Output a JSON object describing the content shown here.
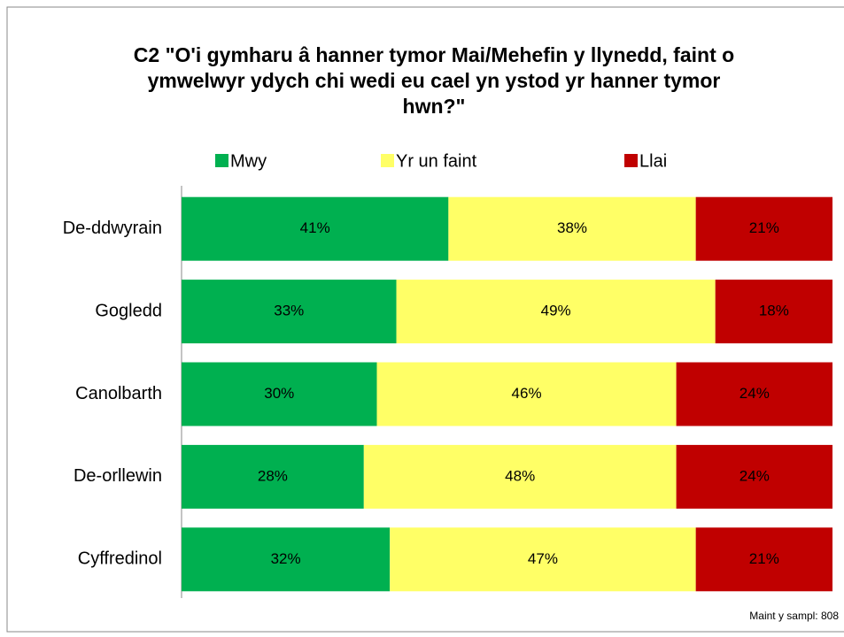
{
  "chart_data": {
    "type": "stacked_bar_horizontal",
    "title": "C2 \"O'i gymharu â hanner tymor Mai/Mehefin y llynedd, faint o ymwelwyr ydych chi wedi eu cael yn ystod yr hanner tymor hwn?\"",
    "categories": [
      "De-ddwyrain",
      "Gogledd",
      "Canolbarth",
      "De-orllewin",
      "Cyffredinol"
    ],
    "series": [
      {
        "name": "Mwy",
        "color": "#00b050",
        "values": [
          41,
          33,
          30,
          28,
          32
        ],
        "value_labels": [
          "41%",
          "33%",
          "30%",
          "28%",
          "32%"
        ]
      },
      {
        "name": "Yr un faint",
        "color": "#ffff66",
        "values": [
          38,
          49,
          46,
          48,
          47
        ],
        "value_labels": [
          "38%",
          "49%",
          "46%",
          "48%",
          "47%"
        ]
      },
      {
        "name": "Llai",
        "color": "#c00000",
        "values": [
          21,
          18,
          24,
          24,
          21
        ],
        "value_labels": [
          "21%",
          "18%",
          "24%",
          "24%",
          "21%"
        ]
      }
    ],
    "xlim": [
      0,
      100
    ],
    "legend": "top",
    "note": "Maint y sampl: 808"
  }
}
